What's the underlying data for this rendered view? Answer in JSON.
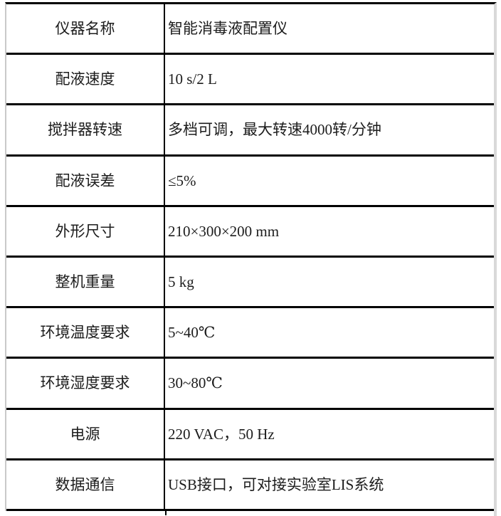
{
  "table": {
    "rows": [
      {
        "label": "仪器名称",
        "value": "智能消毒液配置仪"
      },
      {
        "label": "配液速度",
        "value": "10 s/2 L"
      },
      {
        "label": "搅拌器转速",
        "value": "多档可调，最大转速4000转/分钟"
      },
      {
        "label": "配液误差",
        "value": "≤5%"
      },
      {
        "label": "外形尺寸",
        "value": "210×300×200 mm"
      },
      {
        "label": "整机重量",
        "value": "5 kg"
      },
      {
        "label": "环境温度要求",
        "value": "5~40℃"
      },
      {
        "label": "环境湿度要求",
        "value": "30~80℃"
      },
      {
        "label": "电源",
        "value": "220 VAC，50 Hz"
      },
      {
        "label": "数据通信",
        "value": "USB接口，可对接实验室LIS系统"
      }
    ],
    "colors": {
      "grid_line": "#000000",
      "outer_left_border": "#c9c9c9",
      "outer_right_border": "#d9d9d9",
      "text": "#1c1c1c",
      "background": "#ffffff"
    }
  }
}
